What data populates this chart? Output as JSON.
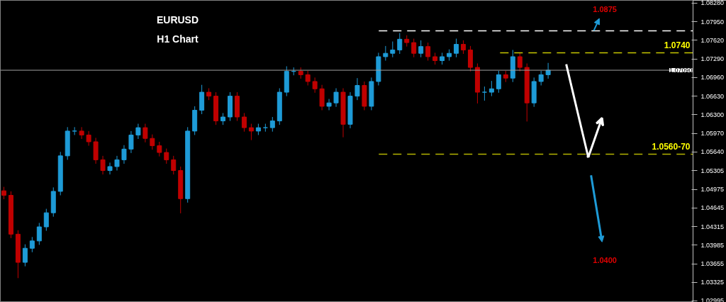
{
  "chart_data": {
    "type": "candlestick",
    "title": "EURUSD",
    "subtitle": "H1 Chart",
    "categories": [
      null,
      null,
      null,
      null,
      null,
      null,
      null,
      null,
      null,
      null,
      null,
      null,
      null,
      null,
      null,
      null,
      null,
      null,
      null,
      null,
      null,
      null,
      null,
      null,
      null,
      null,
      null,
      null,
      null,
      null,
      null,
      null,
      null,
      null,
      null,
      null,
      null,
      null,
      null,
      null,
      null,
      null,
      null,
      null,
      null,
      null,
      null,
      null,
      null,
      null,
      null,
      null,
      null,
      null,
      null,
      null,
      null,
      null,
      null,
      null,
      null,
      null,
      null,
      null,
      null,
      null,
      null,
      null,
      null,
      null,
      null,
      null,
      null,
      null,
      null,
      null,
      null,
      null,
      null,
      null,
      null,
      null,
      null,
      null,
      null,
      null,
      null,
      null,
      null,
      null,
      null,
      null,
      null,
      null,
      null,
      null,
      null,
      null
    ],
    "ohlc": [
      [
        1.0495,
        1.0502,
        1.048,
        1.0487
      ],
      [
        1.0487,
        1.0494,
        1.0411,
        1.0418
      ],
      [
        1.0418,
        1.0425,
        1.034,
        1.0368
      ],
      [
        1.0368,
        1.04,
        1.0361,
        1.0393
      ],
      [
        1.0393,
        1.0413,
        1.0386,
        1.0406
      ],
      [
        1.0406,
        1.0438,
        1.0399,
        1.0431
      ],
      [
        1.0431,
        1.0463,
        1.0424,
        1.0456
      ],
      [
        1.0456,
        1.0501,
        1.0449,
        1.0494
      ],
      [
        1.0494,
        1.0564,
        1.0487,
        1.0557
      ],
      [
        1.0557,
        1.0608,
        1.055,
        1.0601
      ],
      [
        1.0601,
        1.0608,
        1.0594,
        1.0601
      ],
      [
        1.0601,
        1.0608,
        1.0587,
        1.0594
      ],
      [
        1.0594,
        1.0601,
        1.0575,
        1.0582
      ],
      [
        1.0582,
        1.0589,
        1.0543,
        1.055
      ],
      [
        1.055,
        1.0557,
        1.0524,
        1.0531
      ],
      [
        1.0531,
        1.0545,
        1.0524,
        1.0538
      ],
      [
        1.0538,
        1.0557,
        1.0531,
        1.055
      ],
      [
        1.055,
        1.0576,
        1.0543,
        1.0569
      ],
      [
        1.0569,
        1.0601,
        1.0562,
        1.0594
      ],
      [
        1.0594,
        1.0614,
        1.0587,
        1.0607
      ],
      [
        1.0607,
        1.0614,
        1.0581,
        1.0588
      ],
      [
        1.0588,
        1.0595,
        1.0568,
        1.0575
      ],
      [
        1.0575,
        1.0582,
        1.0556,
        1.0563
      ],
      [
        1.0563,
        1.057,
        1.0543,
        1.055
      ],
      [
        1.055,
        1.0557,
        1.0524,
        1.0531
      ],
      [
        1.0531,
        1.0538,
        1.0455,
        1.0481
      ],
      [
        1.0481,
        1.0608,
        1.0474,
        1.0601
      ],
      [
        1.0601,
        1.0645,
        1.0594,
        1.0638
      ],
      [
        1.0638,
        1.0683,
        1.0631,
        1.067
      ],
      [
        1.067,
        1.0677,
        1.0656,
        1.0663
      ],
      [
        1.0663,
        1.067,
        1.0612,
        1.0619
      ],
      [
        1.0619,
        1.0633,
        1.0612,
        1.0626
      ],
      [
        1.0626,
        1.067,
        1.0619,
        1.0663
      ],
      [
        1.0663,
        1.067,
        1.0619,
        1.0626
      ],
      [
        1.0626,
        1.0633,
        1.06,
        1.0607
      ],
      [
        1.0607,
        1.0614,
        1.0585,
        1.0601
      ],
      [
        1.0601,
        1.0614,
        1.0594,
        1.0607
      ],
      [
        1.0607,
        1.0614,
        1.06,
        1.0607
      ],
      [
        1.0607,
        1.0626,
        1.06,
        1.0619
      ],
      [
        1.0619,
        1.0677,
        1.0612,
        1.067
      ],
      [
        1.067,
        1.0716,
        1.0663,
        1.0707
      ],
      [
        1.0707,
        1.0714,
        1.07,
        1.0707
      ],
      [
        1.0707,
        1.0714,
        1.0694,
        1.0701
      ],
      [
        1.0701,
        1.0708,
        1.0682,
        1.0689
      ],
      [
        1.0689,
        1.0696,
        1.0669,
        1.0676
      ],
      [
        1.0676,
        1.0683,
        1.0638,
        1.0645
      ],
      [
        1.0645,
        1.0658,
        1.0638,
        1.0651
      ],
      [
        1.0651,
        1.0677,
        1.0644,
        1.067
      ],
      [
        1.067,
        1.0677,
        1.059,
        1.0613
      ],
      [
        1.0613,
        1.067,
        1.0606,
        1.0663
      ],
      [
        1.0663,
        1.0695,
        1.0656,
        1.0682
      ],
      [
        1.0682,
        1.0689,
        1.0638,
        1.0645
      ],
      [
        1.0645,
        1.0696,
        1.0638,
        1.0689
      ],
      [
        1.0689,
        1.074,
        1.0682,
        1.0733
      ],
      [
        1.0733,
        1.0752,
        1.0726,
        1.0739
      ],
      [
        1.0739,
        1.076,
        1.0732,
        1.0745
      ],
      [
        1.0745,
        1.0775,
        1.0738,
        1.0764
      ],
      [
        1.0764,
        1.0771,
        1.0751,
        1.0758
      ],
      [
        1.0758,
        1.0765,
        1.0732,
        1.0739
      ],
      [
        1.0739,
        1.0762,
        1.0732,
        1.0751
      ],
      [
        1.0751,
        1.0758,
        1.0726,
        1.0733
      ],
      [
        1.0733,
        1.074,
        1.0719,
        1.0726
      ],
      [
        1.0726,
        1.074,
        1.0719,
        1.0733
      ],
      [
        1.0733,
        1.0746,
        1.0726,
        1.0739
      ],
      [
        1.0739,
        1.0765,
        1.0732,
        1.0755
      ],
      [
        1.0755,
        1.0762,
        1.0738,
        1.0745
      ],
      [
        1.0745,
        1.0752,
        1.0707,
        1.0714
      ],
      [
        1.0714,
        1.0721,
        1.065,
        1.067
      ],
      [
        1.067,
        1.068,
        1.0655,
        1.067
      ],
      [
        1.067,
        1.069,
        1.0663,
        1.0676
      ],
      [
        1.0676,
        1.0708,
        1.0669,
        1.0701
      ],
      [
        1.0701,
        1.0708,
        1.0688,
        1.0695
      ],
      [
        1.0695,
        1.0745,
        1.0688,
        1.0733
      ],
      [
        1.0733,
        1.074,
        1.0707,
        1.0714
      ],
      [
        1.0714,
        1.0721,
        1.0618,
        1.0651
      ],
      [
        1.0651,
        1.0696,
        1.0644,
        1.0689
      ],
      [
        1.0689,
        1.0708,
        1.0682,
        1.0701
      ],
      [
        1.0701,
        1.0722,
        1.0694,
        1.0709
      ],
      null,
      null,
      null,
      null,
      null,
      null,
      null,
      null,
      null,
      null,
      null,
      null,
      null,
      null,
      null,
      null,
      null,
      null,
      null,
      null
    ],
    "ylim": [
      1.0297,
      1.0833
    ],
    "yticks": [
      {
        "value": 1.0828,
        "label": "1.08280"
      },
      {
        "value": 1.0795,
        "label": "1.07950"
      },
      {
        "value": 1.0762,
        "label": "1.07620"
      },
      {
        "value": 1.0729,
        "label": "1.07290"
      },
      {
        "value": 1.0696,
        "label": "1.06960"
      },
      {
        "value": 1.0663,
        "label": "1.06630"
      },
      {
        "value": 1.063,
        "label": "1.06300"
      },
      {
        "value": 1.0597,
        "label": "1.05970"
      },
      {
        "value": 1.0564,
        "label": "1.05640"
      },
      {
        "value": 1.05305,
        "label": "1.05305"
      },
      {
        "value": 1.04975,
        "label": "1.04975"
      },
      {
        "value": 1.04645,
        "label": "1.04645"
      },
      {
        "value": 1.04315,
        "label": "1.04315"
      },
      {
        "value": 1.03985,
        "label": "1.03985"
      },
      {
        "value": 1.03655,
        "label": "1.03655"
      },
      {
        "value": 1.03325,
        "label": "1.03325"
      },
      {
        "value": 1.02995,
        "label": "1.02995"
      }
    ],
    "tick_labels": "y",
    "grid": false,
    "ref_lines": [
      {
        "axis": "y",
        "value": 1.0779,
        "label": null,
        "color": "#ffffff",
        "line_style": "dashed"
      },
      {
        "axis": "y",
        "value": 1.074,
        "label": "1.0740",
        "color": "#c8c800",
        "line_style": "dashed"
      },
      {
        "axis": "y",
        "value": 1.0709,
        "label": "1.07090",
        "color": "#a0a0a0",
        "line_style": "solid"
      },
      {
        "axis": "y",
        "value": 1.056,
        "label": "1.0560-70",
        "color": "#b4b400",
        "line_style": "dashed"
      }
    ],
    "annotations": [
      "1.0875",
      "1.0400"
    ]
  }
}
